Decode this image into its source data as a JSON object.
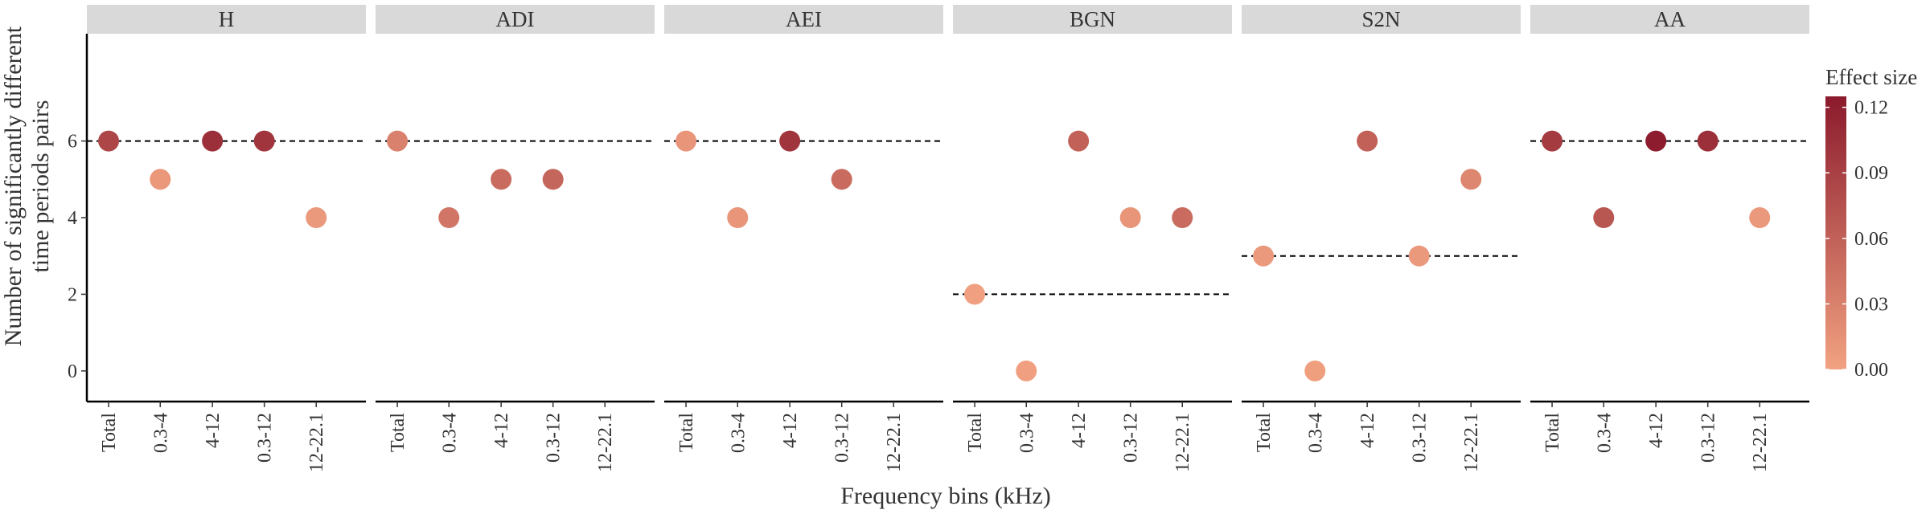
{
  "chart_data": {
    "type": "scatter",
    "ylabel_line1": "Number of significantly different",
    "ylabel_line2": "time periods pairs",
    "xlabel": "Frequency bins (kHz)",
    "categories": [
      "Total",
      "0.3-4",
      "4-12",
      "0.3-12",
      "12-22.1"
    ],
    "ylim": [
      -0.8,
      8.8
    ],
    "y_ticks": [
      0,
      2,
      4,
      6
    ],
    "grid": false,
    "legend": {
      "title": "Effect size",
      "position": "right",
      "range": [
        0.0,
        0.125
      ],
      "ticks": [
        0.0,
        0.03,
        0.06,
        0.09,
        0.12
      ],
      "tick_labels": [
        "0.00",
        "0.03",
        "0.06",
        "0.09",
        "0.12"
      ],
      "low_color": "#f2a281",
      "high_color": "#8b1a2c"
    },
    "reference_line_style": "dashed",
    "panels": [
      {
        "name": "H",
        "reference_line": 6,
        "points": [
          {
            "x": "Total",
            "y": 6,
            "effect": 0.085
          },
          {
            "x": "0.3-4",
            "y": 5,
            "effect": 0.01
          },
          {
            "x": "4-12",
            "y": 6,
            "effect": 0.105
          },
          {
            "x": "0.3-12",
            "y": 6,
            "effect": 0.1
          },
          {
            "x": "12-22.1",
            "y": 4,
            "effect": 0.008
          }
        ]
      },
      {
        "name": "ADI",
        "reference_line": 6,
        "points": [
          {
            "x": "Total",
            "y": 6,
            "effect": 0.03
          },
          {
            "x": "0.3-4",
            "y": 4,
            "effect": 0.04
          },
          {
            "x": "4-12",
            "y": 5,
            "effect": 0.05
          },
          {
            "x": "0.3-12",
            "y": 5,
            "effect": 0.055
          }
        ]
      },
      {
        "name": "AEI",
        "reference_line": 6,
        "points": [
          {
            "x": "Total",
            "y": 6,
            "effect": 0.012
          },
          {
            "x": "0.3-4",
            "y": 4,
            "effect": 0.012
          },
          {
            "x": "4-12",
            "y": 6,
            "effect": 0.1
          },
          {
            "x": "0.3-12",
            "y": 5,
            "effect": 0.05
          }
        ]
      },
      {
        "name": "BGN",
        "reference_line": 2,
        "points": [
          {
            "x": "Total",
            "y": 2,
            "effect": 0.002
          },
          {
            "x": "0.3-4",
            "y": 0,
            "effect": 0.002
          },
          {
            "x": "4-12",
            "y": 6,
            "effect": 0.06
          },
          {
            "x": "0.3-12",
            "y": 4,
            "effect": 0.012
          },
          {
            "x": "12-22.1",
            "y": 4,
            "effect": 0.05
          }
        ]
      },
      {
        "name": "S2N",
        "reference_line": 3,
        "points": [
          {
            "x": "Total",
            "y": 3,
            "effect": 0.008
          },
          {
            "x": "0.3-4",
            "y": 0,
            "effect": 0.004
          },
          {
            "x": "4-12",
            "y": 6,
            "effect": 0.06
          },
          {
            "x": "0.3-12",
            "y": 3,
            "effect": 0.008
          },
          {
            "x": "12-22.1",
            "y": 5,
            "effect": 0.025
          }
        ]
      },
      {
        "name": "AA",
        "reference_line": 6,
        "points": [
          {
            "x": "Total",
            "y": 6,
            "effect": 0.095
          },
          {
            "x": "0.3-4",
            "y": 4,
            "effect": 0.07
          },
          {
            "x": "4-12",
            "y": 6,
            "effect": 0.122
          },
          {
            "x": "0.3-12",
            "y": 6,
            "effect": 0.105
          },
          {
            "x": "12-22.1",
            "y": 4,
            "effect": 0.008
          }
        ]
      }
    ]
  }
}
